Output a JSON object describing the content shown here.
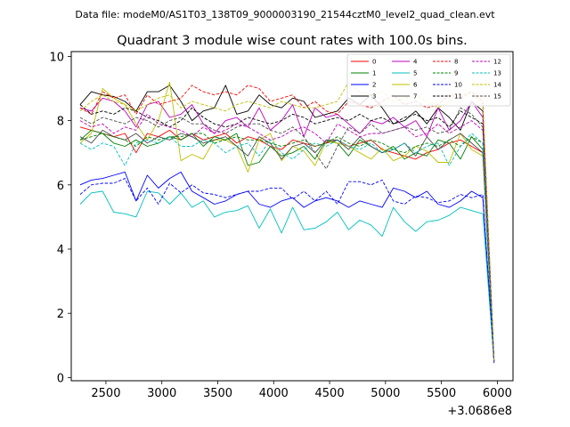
{
  "chart_data": {
    "type": "line",
    "suptitle": "Data file: modeM0/AS1T03_138T09_9000003190_21544cztM0_level2_quad_clean.evt",
    "title": "Quadrant 3 module wise count rates with 100.0s bins.",
    "xlabel": "",
    "ylabel": "",
    "x_offset_label": "+3.0686e8",
    "xlim": [
      2190,
      6140
    ],
    "ylim": [
      -0.1,
      10.15
    ],
    "xticks": [
      2500,
      3000,
      3500,
      4000,
      4500,
      5000,
      5500,
      6000
    ],
    "yticks": [
      0,
      2,
      4,
      6,
      8,
      10
    ],
    "legend_position": "top-right",
    "x": [
      2270,
      2370,
      2470,
      2570,
      2670,
      2770,
      2870,
      2970,
      3070,
      3170,
      3270,
      3370,
      3470,
      3570,
      3670,
      3770,
      3870,
      3970,
      4070,
      4170,
      4270,
      4370,
      4470,
      4570,
      4670,
      4770,
      4870,
      4970,
      5070,
      5170,
      5270,
      5370,
      5470,
      5570,
      5670,
      5770,
      5870,
      5970
    ],
    "series": [
      {
        "name": "0",
        "color": "#ff0000",
        "dashed": false,
        "values": [
          7.8,
          7.7,
          7.6,
          7.5,
          7.6,
          7.0,
          7.6,
          7.5,
          7.7,
          7.4,
          7.6,
          7.4,
          7.5,
          7.6,
          7.3,
          7.5,
          7.4,
          7.2,
          7.1,
          7.4,
          7.3,
          7.2,
          7.3,
          7.4,
          7.2,
          7.3,
          7.4,
          7.1,
          7.0,
          6.9,
          6.8,
          7.0,
          7.1,
          7.3,
          7.4,
          7.2,
          7.0,
          0.5
        ]
      },
      {
        "name": "1",
        "color": "#008000",
        "dashed": false,
        "values": [
          7.4,
          7.7,
          7.6,
          7.3,
          7.2,
          7.4,
          7.2,
          7.3,
          7.5,
          7.4,
          7.6,
          7.2,
          7.5,
          7.4,
          7.6,
          6.6,
          6.7,
          7.2,
          6.9,
          7.0,
          7.2,
          6.8,
          7.4,
          7.3,
          6.9,
          7.4,
          7.2,
          7.0,
          7.2,
          6.8,
          7.0,
          6.9,
          7.4,
          7.3,
          6.8,
          7.5,
          7.1,
          0.5
        ]
      },
      {
        "name": "2",
        "color": "#0000ff",
        "dashed": false,
        "values": [
          6.0,
          6.15,
          6.2,
          6.3,
          6.4,
          5.5,
          6.3,
          5.9,
          6.2,
          6.4,
          5.8,
          5.6,
          5.4,
          5.5,
          5.7,
          5.8,
          5.4,
          5.3,
          5.5,
          5.6,
          5.3,
          5.5,
          5.6,
          5.5,
          5.3,
          5.5,
          5.4,
          5.3,
          5.9,
          5.8,
          5.6,
          5.8,
          5.4,
          5.3,
          5.5,
          5.8,
          5.6,
          0.45
        ]
      },
      {
        "name": "3",
        "color": "#000000",
        "dashed": false,
        "values": [
          8.5,
          8.9,
          8.8,
          8.75,
          8.6,
          8.3,
          8.9,
          8.9,
          9.1,
          8.6,
          8.0,
          8.3,
          8.4,
          9.1,
          8.2,
          8.3,
          8.8,
          8.5,
          8.4,
          8.7,
          8.6,
          8.1,
          8.2,
          8.3,
          8.7,
          8.5,
          8.8,
          8.4,
          7.9,
          8.0,
          8.3,
          7.9,
          8.4,
          8.1,
          7.7,
          8.6,
          8.3,
          0.5
        ]
      },
      {
        "name": "4",
        "color": "#bf00bf",
        "dashed": false,
        "values": [
          8.4,
          8.3,
          8.7,
          8.6,
          8.3,
          7.8,
          8.5,
          8.6,
          8.1,
          8.2,
          8.5,
          7.9,
          7.6,
          8.0,
          8.1,
          7.8,
          8.4,
          7.7,
          8.0,
          8.5,
          7.5,
          8.4,
          8.1,
          8.2,
          7.9,
          7.6,
          8.0,
          7.9,
          8.1,
          7.8,
          8.0,
          7.5,
          8.4,
          7.7,
          8.0,
          8.6,
          8.1,
          0.5
        ]
      },
      {
        "name": "5",
        "color": "#00bfbf",
        "dashed": false,
        "values": [
          5.4,
          5.75,
          5.8,
          5.15,
          5.1,
          5.0,
          5.8,
          5.75,
          5.4,
          5.75,
          5.3,
          5.5,
          5.0,
          5.15,
          5.2,
          5.35,
          4.65,
          5.25,
          4.5,
          5.3,
          4.6,
          4.65,
          4.85,
          5.15,
          4.6,
          4.9,
          4.75,
          4.4,
          5.3,
          4.85,
          4.55,
          4.85,
          4.9,
          5.05,
          5.3,
          5.2,
          5.1,
          0.5
        ]
      },
      {
        "name": "6",
        "color": "#bfbf00",
        "dashed": false,
        "values": [
          7.3,
          7.6,
          9.0,
          8.7,
          8.5,
          7.9,
          7.4,
          8.0,
          9.2,
          6.75,
          6.95,
          6.8,
          7.4,
          7.4,
          7.2,
          6.4,
          7.4,
          7.6,
          6.75,
          7.2,
          7.05,
          6.6,
          7.35,
          7.3,
          7.2,
          7.0,
          6.8,
          7.15,
          6.75,
          6.9,
          7.2,
          7.05,
          6.7,
          6.7,
          7.6,
          7.1,
          6.9,
          0.5
        ]
      },
      {
        "name": "7",
        "color": "#4d4d4d",
        "dashed": false,
        "values": [
          7.5,
          7.3,
          7.7,
          7.5,
          7.4,
          7.6,
          7.3,
          7.5,
          7.4,
          7.6,
          7.5,
          7.3,
          7.4,
          7.5,
          7.2,
          6.9,
          7.5,
          7.3,
          6.8,
          7.2,
          7.3,
          7.0,
          7.4,
          7.4,
          7.1,
          7.5,
          7.2,
          7.0,
          7.1,
          7.3,
          6.9,
          7.5,
          7.1,
          7.4,
          7.6,
          7.3,
          7.0,
          0.5
        ]
      },
      {
        "name": "8",
        "color": "#ff0000",
        "dashed": true,
        "values": [
          8.4,
          8.2,
          8.9,
          8.7,
          8.8,
          8.2,
          8.8,
          8.5,
          8.6,
          8.7,
          9.1,
          8.9,
          8.8,
          8.9,
          8.8,
          9.1,
          9.0,
          8.6,
          8.7,
          8.8,
          8.4,
          8.6,
          8.3,
          8.2,
          8.6,
          8.5,
          8.4,
          8.6,
          8.8,
          8.5,
          8.6,
          8.4,
          8.5,
          8.8,
          8.7,
          8.9,
          8.6,
          0.5
        ]
      },
      {
        "name": "9",
        "color": "#008000",
        "dashed": true,
        "values": [
          7.4,
          7.5,
          7.6,
          7.5,
          7.4,
          7.2,
          7.5,
          7.4,
          7.5,
          7.5,
          7.6,
          7.6,
          7.3,
          7.4,
          7.5,
          7.4,
          7.4,
          7.3,
          7.2,
          7.3,
          7.4,
          7.2,
          7.3,
          7.5,
          7.3,
          7.2,
          7.4,
          7.3,
          7.1,
          7.0,
          7.2,
          7.3,
          7.2,
          7.4,
          7.2,
          7.5,
          7.3,
          0.5
        ]
      },
      {
        "name": "10",
        "color": "#0000ff",
        "dashed": true,
        "values": [
          5.7,
          6.0,
          6.05,
          6.05,
          6.2,
          5.5,
          5.9,
          5.4,
          6.05,
          5.75,
          6.0,
          5.75,
          5.7,
          5.6,
          5.7,
          5.8,
          5.8,
          5.9,
          5.9,
          5.55,
          5.8,
          5.5,
          5.8,
          5.4,
          6.1,
          6.1,
          6.0,
          6.15,
          5.5,
          5.4,
          5.65,
          5.6,
          5.45,
          5.5,
          5.7,
          5.6,
          5.7,
          0.5
        ]
      },
      {
        "name": "11",
        "color": "#000000",
        "dashed": true,
        "values": [
          8.5,
          8.2,
          8.3,
          8.2,
          8.4,
          8.3,
          8.1,
          8.0,
          7.8,
          8.0,
          8.4,
          8.1,
          7.9,
          7.8,
          7.9,
          8.1,
          8.0,
          7.9,
          8.0,
          8.2,
          8.1,
          7.9,
          8.0,
          8.1,
          8.0,
          8.2,
          8.0,
          8.1,
          7.9,
          8.1,
          8.2,
          8.0,
          8.1,
          7.8,
          8.3,
          8.1,
          7.9,
          0.5
        ]
      },
      {
        "name": "12",
        "color": "#bf00bf",
        "dashed": true,
        "values": [
          8.0,
          7.8,
          7.9,
          7.6,
          7.8,
          7.7,
          8.2,
          7.9,
          7.8,
          7.7,
          7.5,
          7.8,
          7.6,
          7.7,
          7.9,
          7.8,
          7.6,
          7.4,
          7.5,
          7.7,
          7.8,
          7.6,
          7.3,
          7.9,
          7.7,
          7.5,
          7.6,
          7.6,
          7.7,
          7.8,
          7.5,
          7.6,
          7.9,
          7.6,
          7.8,
          8.0,
          7.7,
          0.5
        ]
      },
      {
        "name": "13",
        "color": "#00bfbf",
        "dashed": true,
        "values": [
          7.3,
          7.1,
          7.3,
          7.2,
          6.6,
          7.3,
          7.4,
          7.3,
          7.5,
          7.2,
          7.2,
          7.4,
          7.3,
          7.0,
          7.2,
          7.3,
          6.9,
          7.4,
          7.0,
          6.8,
          7.1,
          7.3,
          7.2,
          7.4,
          7.2,
          7.1,
          7.3,
          7.0,
          7.1,
          7.3,
          7.0,
          7.2,
          7.3,
          6.6,
          7.2,
          7.6,
          7.3,
          0.5
        ]
      },
      {
        "name": "14",
        "color": "#bfbf00",
        "dashed": true,
        "values": [
          8.3,
          8.6,
          8.8,
          8.6,
          8.5,
          8.3,
          8.5,
          8.7,
          8.8,
          8.4,
          8.6,
          8.5,
          8.4,
          8.3,
          8.5,
          8.6,
          8.5,
          8.4,
          8.6,
          8.5,
          8.4,
          8.4,
          8.5,
          8.6,
          9.2,
          8.9,
          8.8,
          8.9,
          8.6,
          8.7,
          8.8,
          8.6,
          8.4,
          8.6,
          8.8,
          8.9,
          8.5,
          0.5
        ]
      },
      {
        "name": "15",
        "color": "#4d4d4d",
        "dashed": true,
        "values": [
          8.1,
          7.9,
          8.1,
          8.0,
          7.9,
          8.1,
          8.0,
          7.8,
          8.0,
          8.1,
          7.9,
          7.9,
          7.7,
          7.6,
          7.8,
          7.9,
          7.9,
          7.7,
          7.6,
          7.8,
          7.5,
          7.0,
          6.5,
          7.2,
          7.8,
          7.6,
          7.9,
          7.6,
          7.7,
          7.8,
          7.7,
          7.8,
          7.6,
          7.7,
          8.4,
          8.2,
          7.8,
          0.5
        ]
      }
    ]
  }
}
